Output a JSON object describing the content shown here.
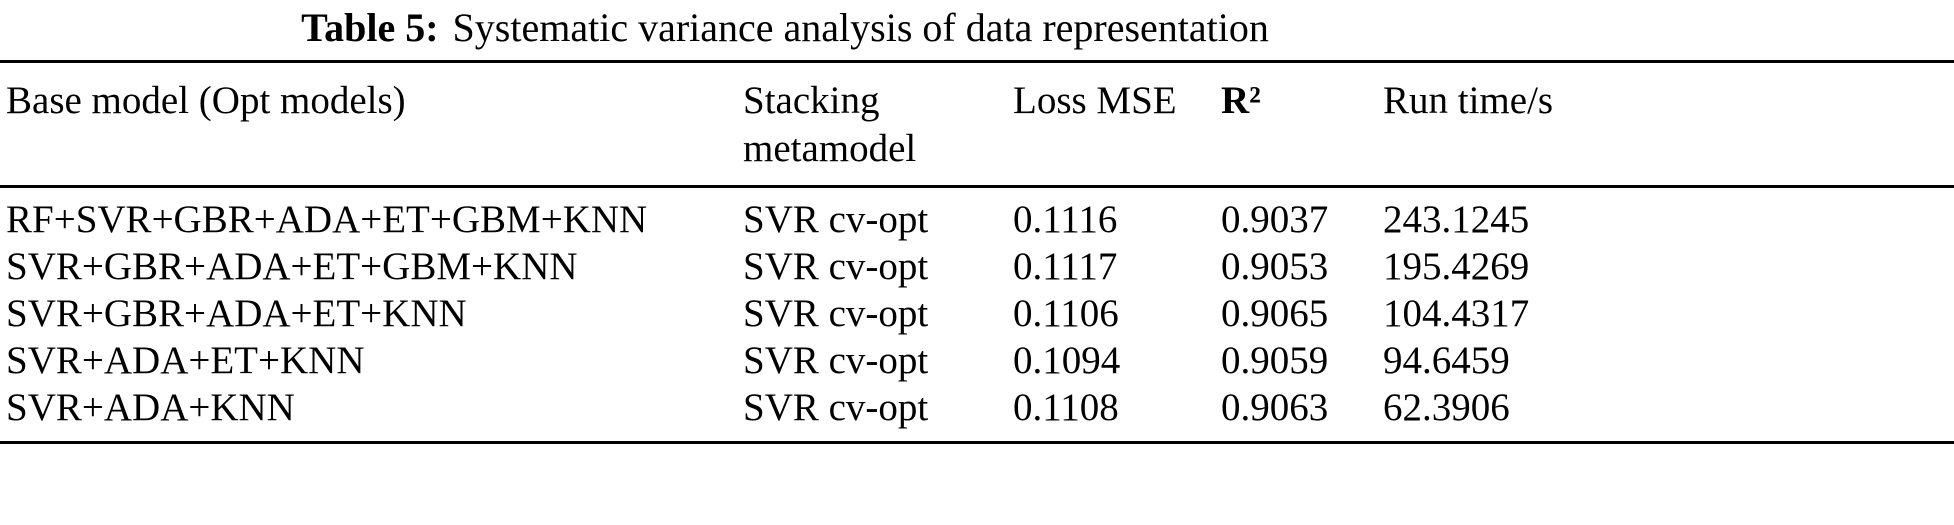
{
  "caption": {
    "label": "Table 5:",
    "text": "Systematic variance analysis of data representation"
  },
  "table": {
    "headers": {
      "base_model": "Base model (Opt models)",
      "stacking": "Stacking metamodel",
      "loss": "Loss MSE",
      "r2": "R²",
      "runtime": "Run time/s"
    },
    "rows": [
      {
        "base_model": "RF+SVR+GBR+ADA+ET+GBM+KNN",
        "stacking": "SVR cv-opt",
        "loss": "0.1116",
        "r2": "0.9037",
        "runtime": "243.1245"
      },
      {
        "base_model": "SVR+GBR+ADA+ET+GBM+KNN",
        "stacking": "SVR cv-opt",
        "loss": "0.1117",
        "r2": "0.9053",
        "runtime": "195.4269"
      },
      {
        "base_model": "SVR+GBR+ADA+ET+KNN",
        "stacking": "SVR cv-opt",
        "loss": "0.1106",
        "r2": "0.9065",
        "runtime": "104.4317"
      },
      {
        "base_model": "SVR+ADA+ET+KNN",
        "stacking": "SVR cv-opt",
        "loss": "0.1094",
        "r2": "0.9059",
        "runtime": "94.6459"
      },
      {
        "base_model": "SVR+ADA+KNN",
        "stacking": "SVR cv-opt",
        "loss": "0.1108",
        "r2": "0.9063",
        "runtime": "62.3906"
      }
    ]
  }
}
